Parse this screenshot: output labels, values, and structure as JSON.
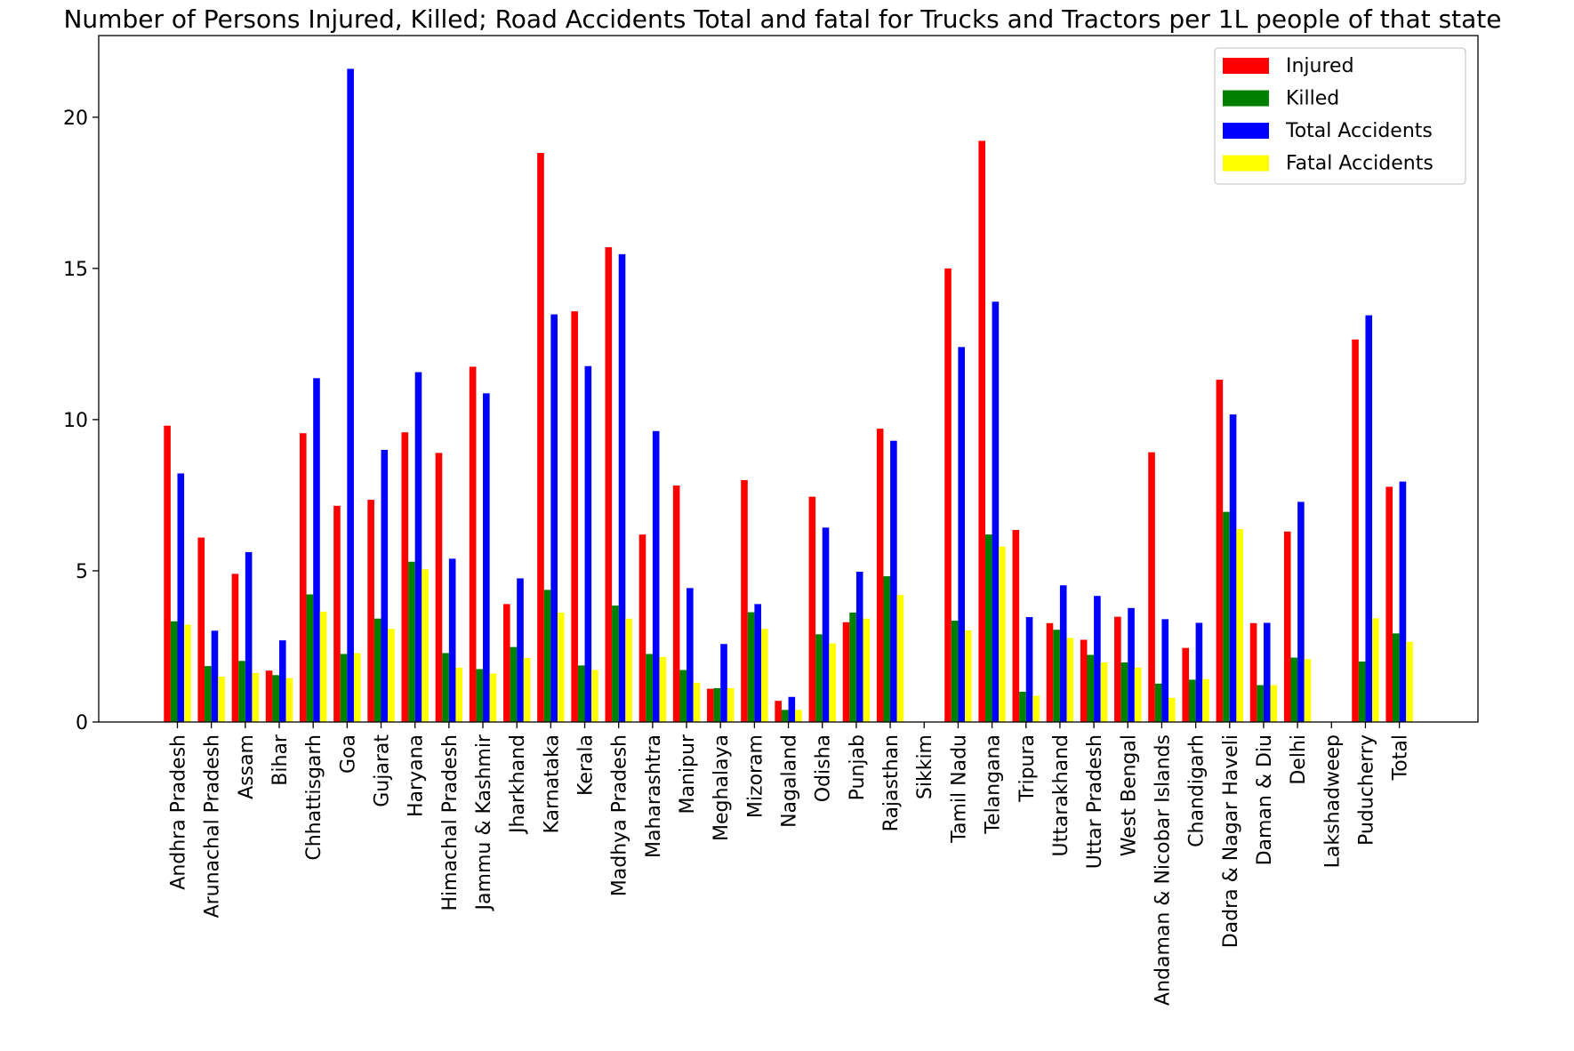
{
  "chart_data": {
    "type": "bar",
    "title": "Number of Persons Injured, Killed; Road Accidents Total and fatal for Trucks and Tractors per 1L people of that state",
    "xlabel": "",
    "ylabel": "",
    "ylim": [
      0,
      22.7
    ],
    "yticks": [
      0,
      5,
      10,
      15,
      20
    ],
    "legend_position": "top-right",
    "grid": false,
    "categories": [
      "Andhra Pradesh",
      "Arunachal Pradesh",
      "Assam",
      "Bihar",
      "Chhattisgarh",
      "Goa",
      "Gujarat",
      "Haryana",
      "Himachal Pradesh",
      "Jammu & Kashmir",
      "Jharkhand",
      "Karnataka",
      "Kerala",
      "Madhya Pradesh",
      "Maharashtra",
      "Manipur",
      "Meghalaya",
      "Mizoram",
      "Nagaland",
      "Odisha",
      "Punjab",
      "Rajasthan",
      "Sikkim",
      "Tamil Nadu",
      "Telangana",
      "Tripura",
      "Uttarakhand",
      "Uttar Pradesh",
      "West Bengal",
      "Andaman & Nicobar Islands",
      "Chandigarh",
      "Dadra & Nagar Haveli",
      "Daman & Diu",
      "Delhi",
      "Lakshadweep",
      "Puducherry",
      "Total"
    ],
    "series": [
      {
        "name": "Injured",
        "color": "#ff0000",
        "values": [
          9.8,
          6.1,
          4.9,
          1.7,
          9.55,
          7.15,
          7.35,
          9.58,
          8.9,
          11.75,
          3.9,
          18.82,
          13.58,
          15.7,
          6.2,
          7.82,
          1.1,
          8.0,
          0.7,
          7.45,
          3.3,
          9.7,
          0,
          15.0,
          19.22,
          6.35,
          3.27,
          2.72,
          3.48,
          8.92,
          2.45,
          11.32,
          3.27,
          6.3,
          0,
          12.65,
          7.78
        ]
      },
      {
        "name": "Killed",
        "color": "#008000",
        "values": [
          3.33,
          1.85,
          2.02,
          1.55,
          4.22,
          2.25,
          3.42,
          5.3,
          2.28,
          1.75,
          2.48,
          4.37,
          1.87,
          3.85,
          2.25,
          1.72,
          1.12,
          3.63,
          0.4,
          2.9,
          3.62,
          4.82,
          0,
          3.35,
          6.2,
          1.0,
          3.05,
          2.22,
          1.97,
          1.27,
          1.4,
          6.95,
          1.22,
          2.13,
          0,
          2.0,
          2.93
        ]
      },
      {
        "name": "Total Accidents",
        "color": "#0000ff",
        "values": [
          8.22,
          3.02,
          5.62,
          2.7,
          11.37,
          21.6,
          9.0,
          11.57,
          5.4,
          10.87,
          4.75,
          13.48,
          11.77,
          15.47,
          9.62,
          4.43,
          2.58,
          3.9,
          0.83,
          6.43,
          4.97,
          9.3,
          0,
          12.4,
          13.9,
          3.47,
          4.52,
          4.17,
          3.77,
          3.4,
          3.28,
          10.17,
          3.28,
          7.28,
          0,
          13.45,
          7.95
        ]
      },
      {
        "name": "Fatal Accidents",
        "color": "#ffff00",
        "values": [
          3.22,
          1.5,
          1.62,
          1.45,
          3.65,
          2.28,
          3.08,
          5.05,
          1.8,
          1.6,
          2.12,
          3.62,
          1.72,
          3.42,
          2.15,
          1.3,
          1.12,
          3.08,
          0.4,
          2.6,
          3.42,
          4.2,
          0,
          3.03,
          5.8,
          0.87,
          2.78,
          1.97,
          1.8,
          0.8,
          1.42,
          6.38,
          1.22,
          2.08,
          0,
          3.43,
          2.65
        ]
      }
    ]
  }
}
